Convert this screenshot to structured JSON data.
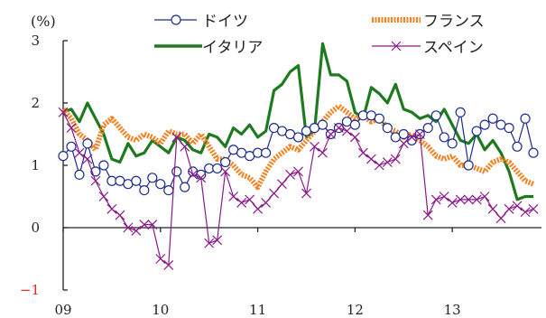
{
  "chart_data": {
    "type": "line",
    "y_unit_label": "(%)",
    "xlabel": "",
    "ylabel": "",
    "ylim": [
      -1,
      3
    ],
    "yticks": [
      "3",
      "2",
      "1",
      "0",
      "−1"
    ],
    "x_tick_labels": [
      {
        "label": "09",
        "x": 0
      },
      {
        "label": "10",
        "x": 12
      },
      {
        "label": "11",
        "x": 24
      },
      {
        "label": "12",
        "x": 36
      },
      {
        "label": "13",
        "x": 48
      }
    ],
    "x_range": [
      0,
      59
    ],
    "x_note": "x = months since Jan 2009",
    "grid": false,
    "legend_position": "top",
    "negative_tick_color": "#e8262a",
    "series": [
      {
        "name": "ドイツ",
        "color": "#1c2d8c",
        "marker": "circle",
        "style": "thin",
        "values": [
          1.15,
          1.3,
          0.85,
          1.35,
          0.9,
          1.0,
          0.75,
          0.75,
          0.7,
          0.75,
          0.6,
          0.8,
          0.7,
          0.6,
          0.9,
          0.65,
          0.9,
          0.85,
          0.95,
          0.95,
          1.05,
          1.25,
          1.2,
          1.15,
          1.2,
          1.2,
          1.6,
          1.55,
          1.5,
          1.45,
          1.55,
          1.6,
          1.65,
          1.5,
          1.6,
          1.7,
          1.65,
          1.8,
          1.8,
          1.75,
          1.6,
          1.45,
          1.5,
          1.4,
          1.5,
          1.6,
          1.8,
          1.45,
          1.35,
          1.85,
          1.0,
          1.55,
          1.65,
          1.75,
          1.65,
          1.6,
          1.3,
          1.75,
          1.2
        ]
      },
      {
        "name": "フランス",
        "color": "#f58220",
        "marker": "none",
        "style": "thick-dotted",
        "values": [
          1.9,
          1.75,
          1.5,
          1.4,
          1.25,
          1.65,
          1.75,
          1.6,
          1.45,
          1.4,
          1.5,
          1.45,
          1.35,
          1.55,
          1.5,
          1.5,
          1.35,
          1.5,
          1.3,
          1.1,
          1.1,
          1.0,
          0.85,
          0.8,
          0.65,
          0.9,
          1.1,
          1.2,
          1.3,
          1.25,
          1.4,
          1.55,
          1.7,
          1.85,
          1.95,
          1.85,
          1.75,
          1.8,
          1.7,
          1.75,
          1.6,
          1.55,
          1.45,
          1.5,
          1.4,
          1.3,
          1.15,
          1.1,
          1.15,
          1.0,
          1.0,
          0.95,
          0.9,
          1.05,
          1.1,
          1.05,
          0.9,
          0.75,
          0.7
        ]
      },
      {
        "name": "イタリア",
        "color": "#1f7a1f",
        "marker": "none",
        "style": "thick",
        "values": [
          1.85,
          1.9,
          1.7,
          2.0,
          1.75,
          1.5,
          1.1,
          1.05,
          1.35,
          1.15,
          1.2,
          1.4,
          1.3,
          1.2,
          1.45,
          1.4,
          1.25,
          1.2,
          1.5,
          1.45,
          1.3,
          1.6,
          1.5,
          1.65,
          1.45,
          1.55,
          2.2,
          2.3,
          2.5,
          2.6,
          1.45,
          1.55,
          2.95,
          2.45,
          2.45,
          2.35,
          1.85,
          1.75,
          2.25,
          2.15,
          2.0,
          2.3,
          1.9,
          1.85,
          1.75,
          1.8,
          1.7,
          1.9,
          1.65,
          1.4,
          1.35,
          1.5,
          1.25,
          1.4,
          1.2,
          0.9,
          0.45,
          0.5,
          0.5
        ]
      },
      {
        "name": "スペイン",
        "color": "#8b1a8b",
        "marker": "x",
        "style": "thin",
        "values": [
          1.85,
          1.6,
          1.2,
          1.1,
          0.75,
          0.5,
          0.3,
          0.2,
          0.0,
          -0.05,
          0.05,
          0.05,
          -0.5,
          -0.6,
          1.45,
          1.3,
          0.85,
          0.8,
          -0.25,
          -0.2,
          0.9,
          0.5,
          0.4,
          0.45,
          0.3,
          0.4,
          0.55,
          0.7,
          0.85,
          0.9,
          0.55,
          1.3,
          1.2,
          1.5,
          1.6,
          1.55,
          1.45,
          1.2,
          1.1,
          1.0,
          1.05,
          1.1,
          1.35,
          1.45,
          1.5,
          0.2,
          0.45,
          0.5,
          0.4,
          0.45,
          0.45,
          0.45,
          0.5,
          0.3,
          0.15,
          0.3,
          0.35,
          0.25,
          0.3
        ]
      }
    ]
  }
}
